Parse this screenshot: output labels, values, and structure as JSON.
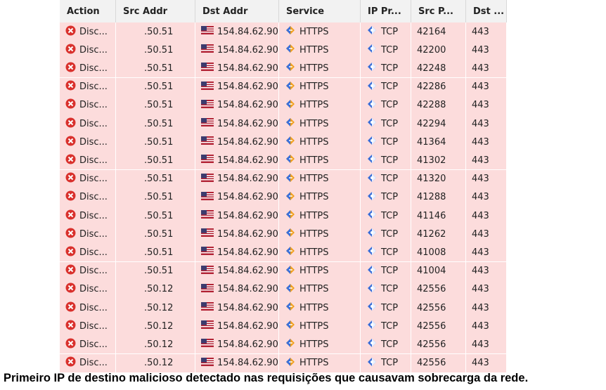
{
  "table": {
    "headers": [
      "Action",
      "Src Addr",
      "Dst Addr",
      "Service",
      "IP Pr...",
      "Src P...",
      "Dst ..."
    ],
    "rows": [
      [
        "Disc...",
        ".50.51",
        "154.84.62.90",
        "HTTPS",
        "TCP",
        "42164",
        "443"
      ],
      [
        "Disc...",
        ".50.51",
        "154.84.62.90",
        "HTTPS",
        "TCP",
        "42200",
        "443"
      ],
      [
        "Disc...",
        ".50.51",
        "154.84.62.90",
        "HTTPS",
        "TCP",
        "42248",
        "443"
      ],
      [
        "Disc...",
        ".50.51",
        "154.84.62.90",
        "HTTPS",
        "TCP",
        "42286",
        "443"
      ],
      [
        "Disc...",
        ".50.51",
        "154.84.62.90",
        "HTTPS",
        "TCP",
        "42288",
        "443"
      ],
      [
        "Disc...",
        ".50.51",
        "154.84.62.90",
        "HTTPS",
        "TCP",
        "42294",
        "443"
      ],
      [
        "Disc...",
        ".50.51",
        "154.84.62.90",
        "HTTPS",
        "TCP",
        "41364",
        "443"
      ],
      [
        "Disc...",
        ".50.51",
        "154.84.62.90",
        "HTTPS",
        "TCP",
        "41302",
        "443"
      ],
      [
        "Disc...",
        ".50.51",
        "154.84.62.90",
        "HTTPS",
        "TCP",
        "41320",
        "443"
      ],
      [
        "Disc...",
        ".50.51",
        "154.84.62.90",
        "HTTPS",
        "TCP",
        "41288",
        "443"
      ],
      [
        "Disc...",
        ".50.51",
        "154.84.62.90",
        "HTTPS",
        "TCP",
        "41146",
        "443"
      ],
      [
        "Disc...",
        ".50.51",
        "154.84.62.90",
        "HTTPS",
        "TCP",
        "41262",
        "443"
      ],
      [
        "Disc...",
        ".50.51",
        "154.84.62.90",
        "HTTPS",
        "TCP",
        "41008",
        "443"
      ],
      [
        "Disc...",
        ".50.51",
        "154.84.62.90",
        "HTTPS",
        "TCP",
        "41004",
        "443"
      ],
      [
        "Disc...",
        ".50.12",
        "154.84.62.90",
        "HTTPS",
        "TCP",
        "42556",
        "443"
      ],
      [
        "Disc...",
        ".50.12",
        "154.84.62.90",
        "HTTPS",
        "TCP",
        "42556",
        "443"
      ],
      [
        "Disc...",
        ".50.12",
        "154.84.62.90",
        "HTTPS",
        "TCP",
        "42556",
        "443"
      ],
      [
        "Disc...",
        ".50.12",
        "154.84.62.90",
        "HTTPS",
        "TCP",
        "42556",
        "443"
      ],
      [
        "Disc...",
        ".50.12",
        "154.84.62.90",
        "HTTPS",
        "TCP",
        "42556",
        "443"
      ]
    ]
  },
  "caption": "Primeiro IP de destino malicioso detectado nas requisições que causavam sobrecarga da rede."
}
